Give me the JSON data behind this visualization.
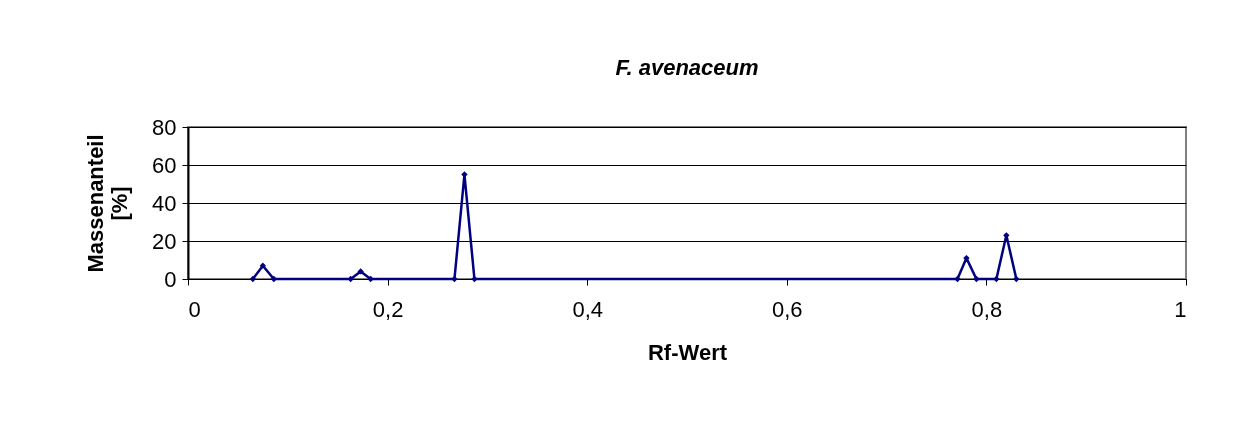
{
  "chart_data": {
    "type": "line",
    "title": "F. avenaceum",
    "xlabel": "Rf-Wert",
    "ylabel": "Massenanteil [%]",
    "x": [
      0.065,
      0.075,
      0.086,
      0.163,
      0.173,
      0.183,
      0.267,
      0.277,
      0.287,
      0.771,
      0.78,
      0.79,
      0.81,
      0.82,
      0.83
    ],
    "series": [
      {
        "color": "#000080",
        "values": [
          0,
          7,
          0,
          0,
          4,
          0,
          0,
          55,
          0,
          0,
          11,
          0,
          0,
          23,
          0
        ]
      }
    ],
    "xlim": [
      0,
      1
    ],
    "xticks": [
      0,
      {
        "value": 0.2,
        "label": "0,2"
      },
      {
        "value": 0.4,
        "label": "0,4"
      },
      {
        "value": 0.6,
        "label": "0,6"
      },
      {
        "value": 0.8,
        "label": "0,8"
      },
      1
    ],
    "ylim": [
      0,
      80
    ],
    "yticks": [
      0,
      20,
      40,
      60,
      80
    ],
    "grid": "y",
    "marker": "diamond",
    "line_style": "solid"
  }
}
